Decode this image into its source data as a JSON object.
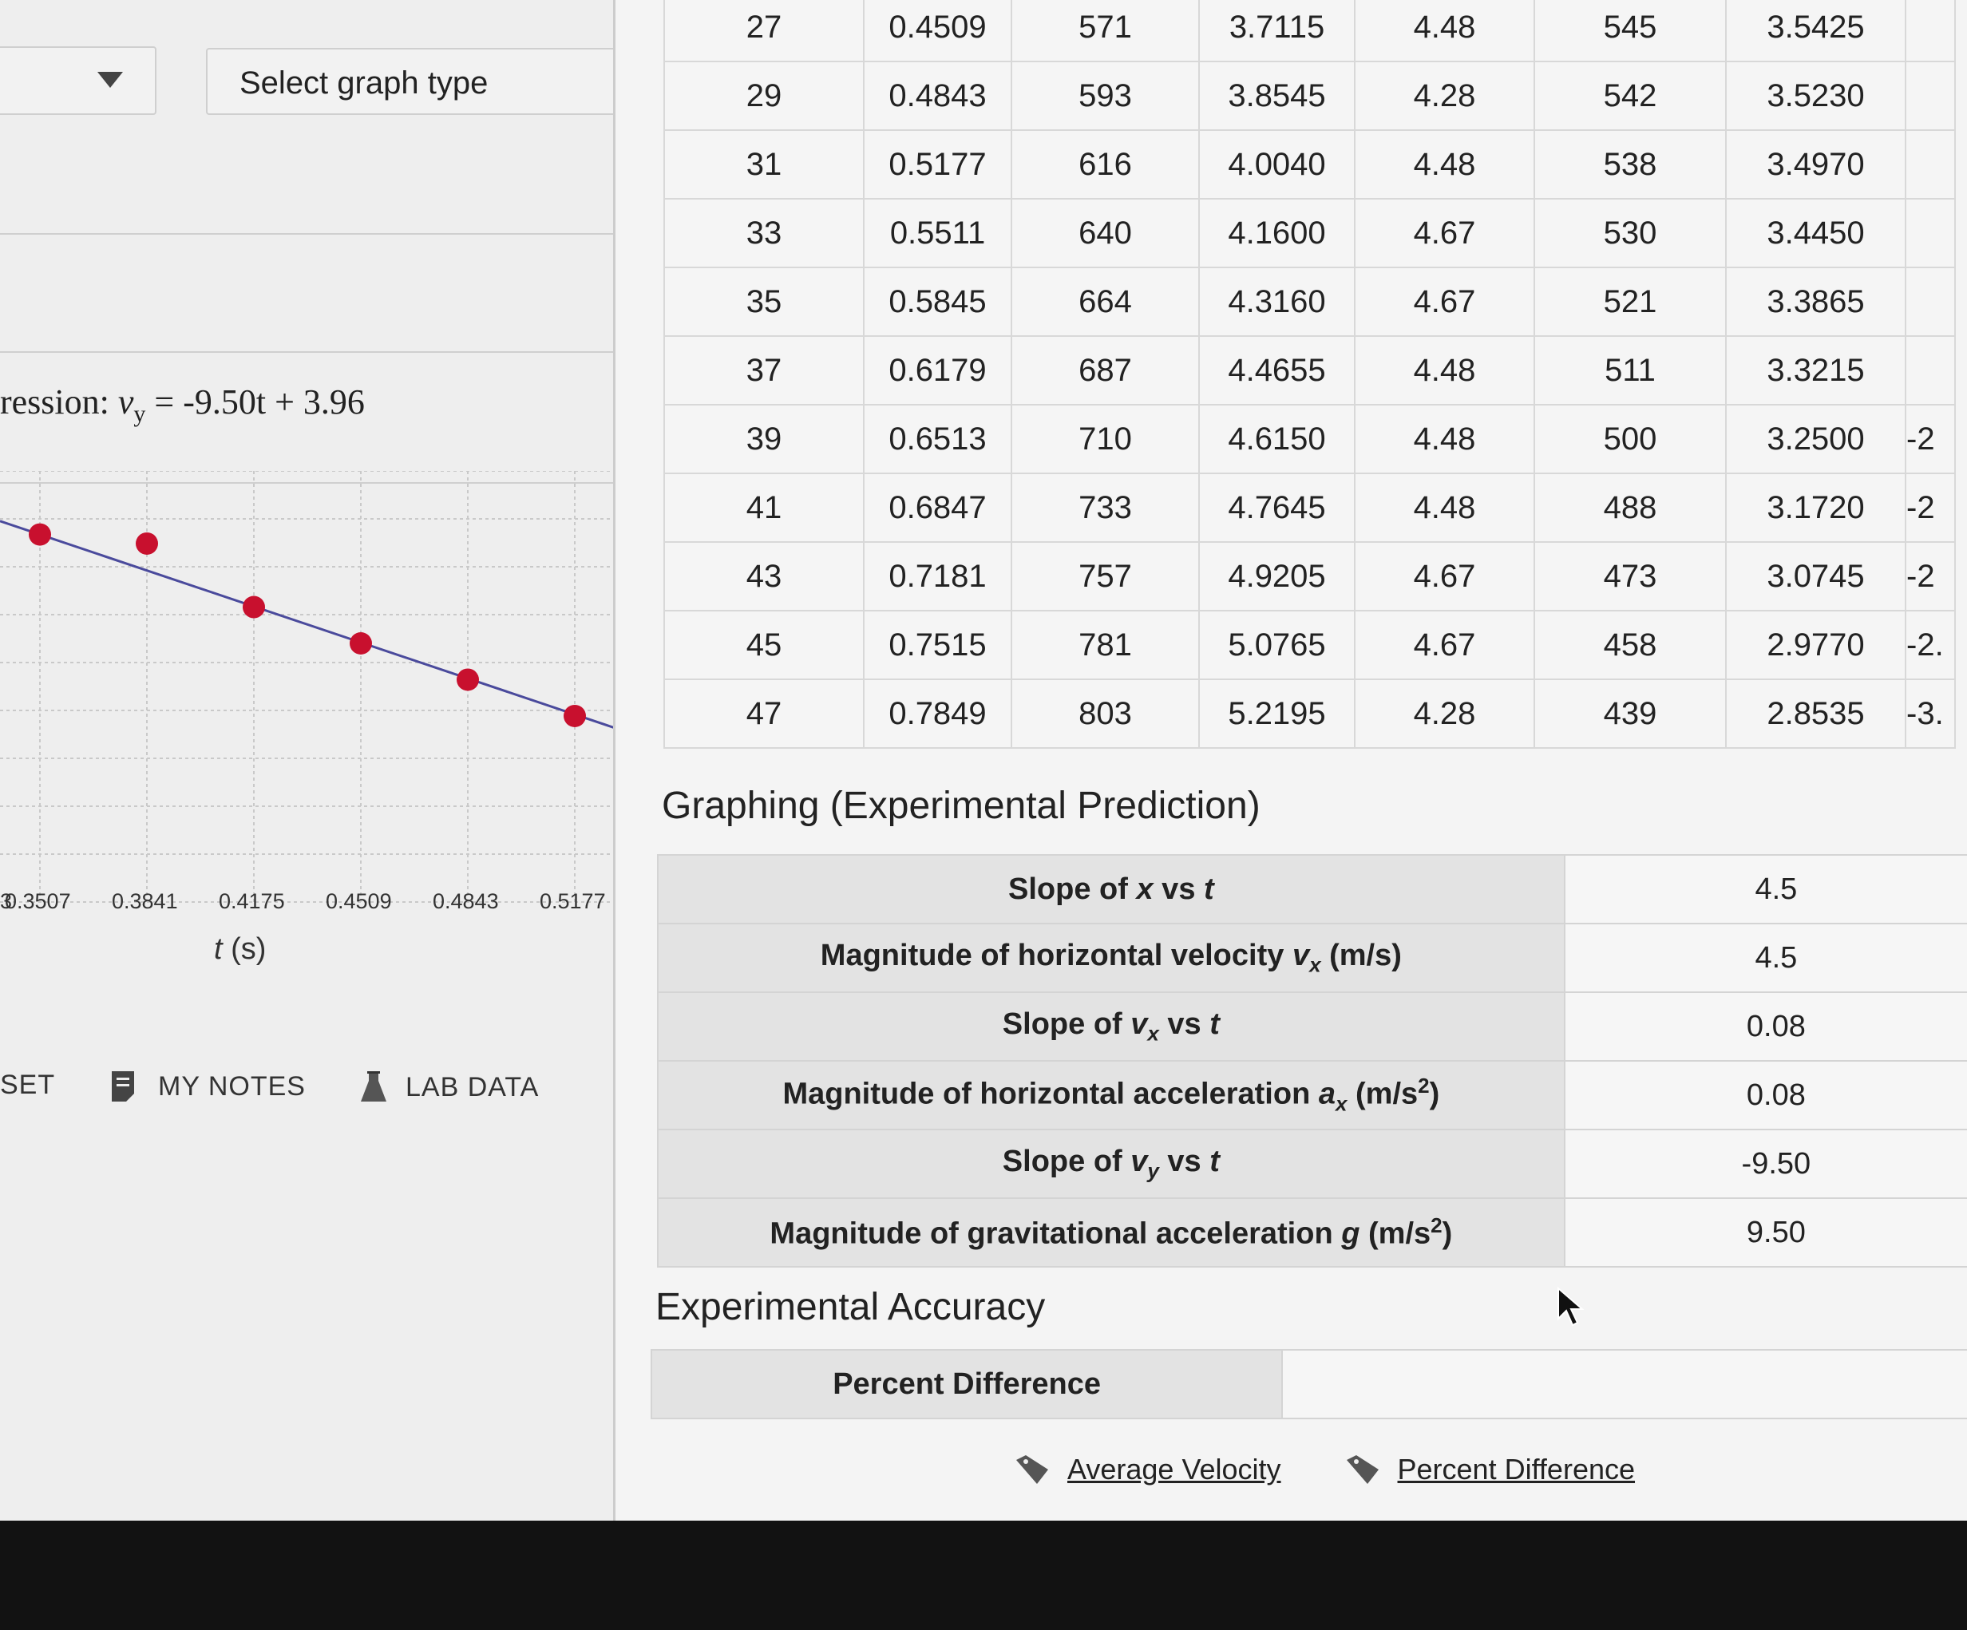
{
  "left_panel": {
    "graph_type_placeholder": "Select graph type",
    "regression": {
      "prefix": "ression:",
      "var": "v",
      "sub": "y",
      "rest": " = -9.50t + 3.96"
    },
    "chart_data": {
      "type": "scatter",
      "title": "",
      "xlabel": "t (s)",
      "x_tick_labels": [
        "3",
        "0.3507",
        "0.3841",
        "0.4175",
        "0.4509",
        "0.4843",
        "0.5177"
      ],
      "points": [
        {
          "x": 0.3507,
          "y": 0.64
        },
        {
          "x": 0.3841,
          "y": 0.56
        },
        {
          "x": 0.4175,
          "y": 0.0
        },
        {
          "x": 0.4509,
          "y": -0.32
        },
        {
          "x": 0.4843,
          "y": -0.64
        },
        {
          "x": 0.5177,
          "y": -0.96
        }
      ],
      "fit": {
        "slope": -9.5,
        "intercept": 3.96
      },
      "ylim": [
        -2.6,
        1.2
      ],
      "grid": true,
      "point_color": "#c8102e",
      "line_color": "#4a4a9c"
    },
    "nav": {
      "reset": "SET",
      "notes": "MY NOTES",
      "lab_data": "LAB DATA"
    }
  },
  "data_table": {
    "rows": [
      [
        "27",
        "0.4509",
        "571",
        "3.7115",
        "4.48",
        "545",
        "3.5425",
        ""
      ],
      [
        "29",
        "0.4843",
        "593",
        "3.8545",
        "4.28",
        "542",
        "3.5230",
        ""
      ],
      [
        "31",
        "0.5177",
        "616",
        "4.0040",
        "4.48",
        "538",
        "3.4970",
        ""
      ],
      [
        "33",
        "0.5511",
        "640",
        "4.1600",
        "4.67",
        "530",
        "3.4450",
        ""
      ],
      [
        "35",
        "0.5845",
        "664",
        "4.3160",
        "4.67",
        "521",
        "3.3865",
        ""
      ],
      [
        "37",
        "0.6179",
        "687",
        "4.4655",
        "4.48",
        "511",
        "3.3215",
        ""
      ],
      [
        "39",
        "0.6513",
        "710",
        "4.6150",
        "4.48",
        "500",
        "3.2500",
        "-2"
      ],
      [
        "41",
        "0.6847",
        "733",
        "4.7645",
        "4.48",
        "488",
        "3.1720",
        "-2"
      ],
      [
        "43",
        "0.7181",
        "757",
        "4.9205",
        "4.67",
        "473",
        "3.0745",
        "-2"
      ],
      [
        "45",
        "0.7515",
        "781",
        "5.0765",
        "4.67",
        "458",
        "2.9770",
        "-2."
      ],
      [
        "47",
        "0.7849",
        "803",
        "5.2195",
        "4.28",
        "439",
        "2.8535",
        "-3."
      ]
    ]
  },
  "graphing": {
    "title": "Graphing (Experimental Prediction)",
    "rows": [
      {
        "pre": "Slope of ",
        "var": "x",
        "sub": "",
        "sup": "",
        "post": " vs ",
        "t": "t",
        "value": "4.5"
      },
      {
        "pre": "Magnitude of horizontal velocity ",
        "var": "v",
        "sub": "x",
        "sup": "",
        "post": " (m/s)",
        "t": "",
        "value": "4.5"
      },
      {
        "pre": "Slope of ",
        "var": "v",
        "sub": "x",
        "sup": "",
        "post": " vs ",
        "t": "t",
        "value": "0.08"
      },
      {
        "pre": "Magnitude of horizontal acceleration ",
        "var": "a",
        "sub": "x",
        "sup": "2",
        "post": " (m/s",
        "t": "",
        "value": "0.08"
      },
      {
        "pre": "Slope of ",
        "var": "v",
        "sub": "y",
        "sup": "",
        "post": " vs ",
        "t": "t",
        "value": "-9.50"
      },
      {
        "pre": "Magnitude of gravitational acceleration ",
        "var": "g",
        "sub": "",
        "sup": "2",
        "post": " (m/s",
        "t": "",
        "value": "9.50"
      }
    ]
  },
  "accuracy": {
    "title": "Experimental Accuracy",
    "label": "Percent Difference",
    "value": ""
  },
  "links": {
    "avg_velocity": "Average Velocity",
    "percent_difference": "Percent Difference"
  }
}
